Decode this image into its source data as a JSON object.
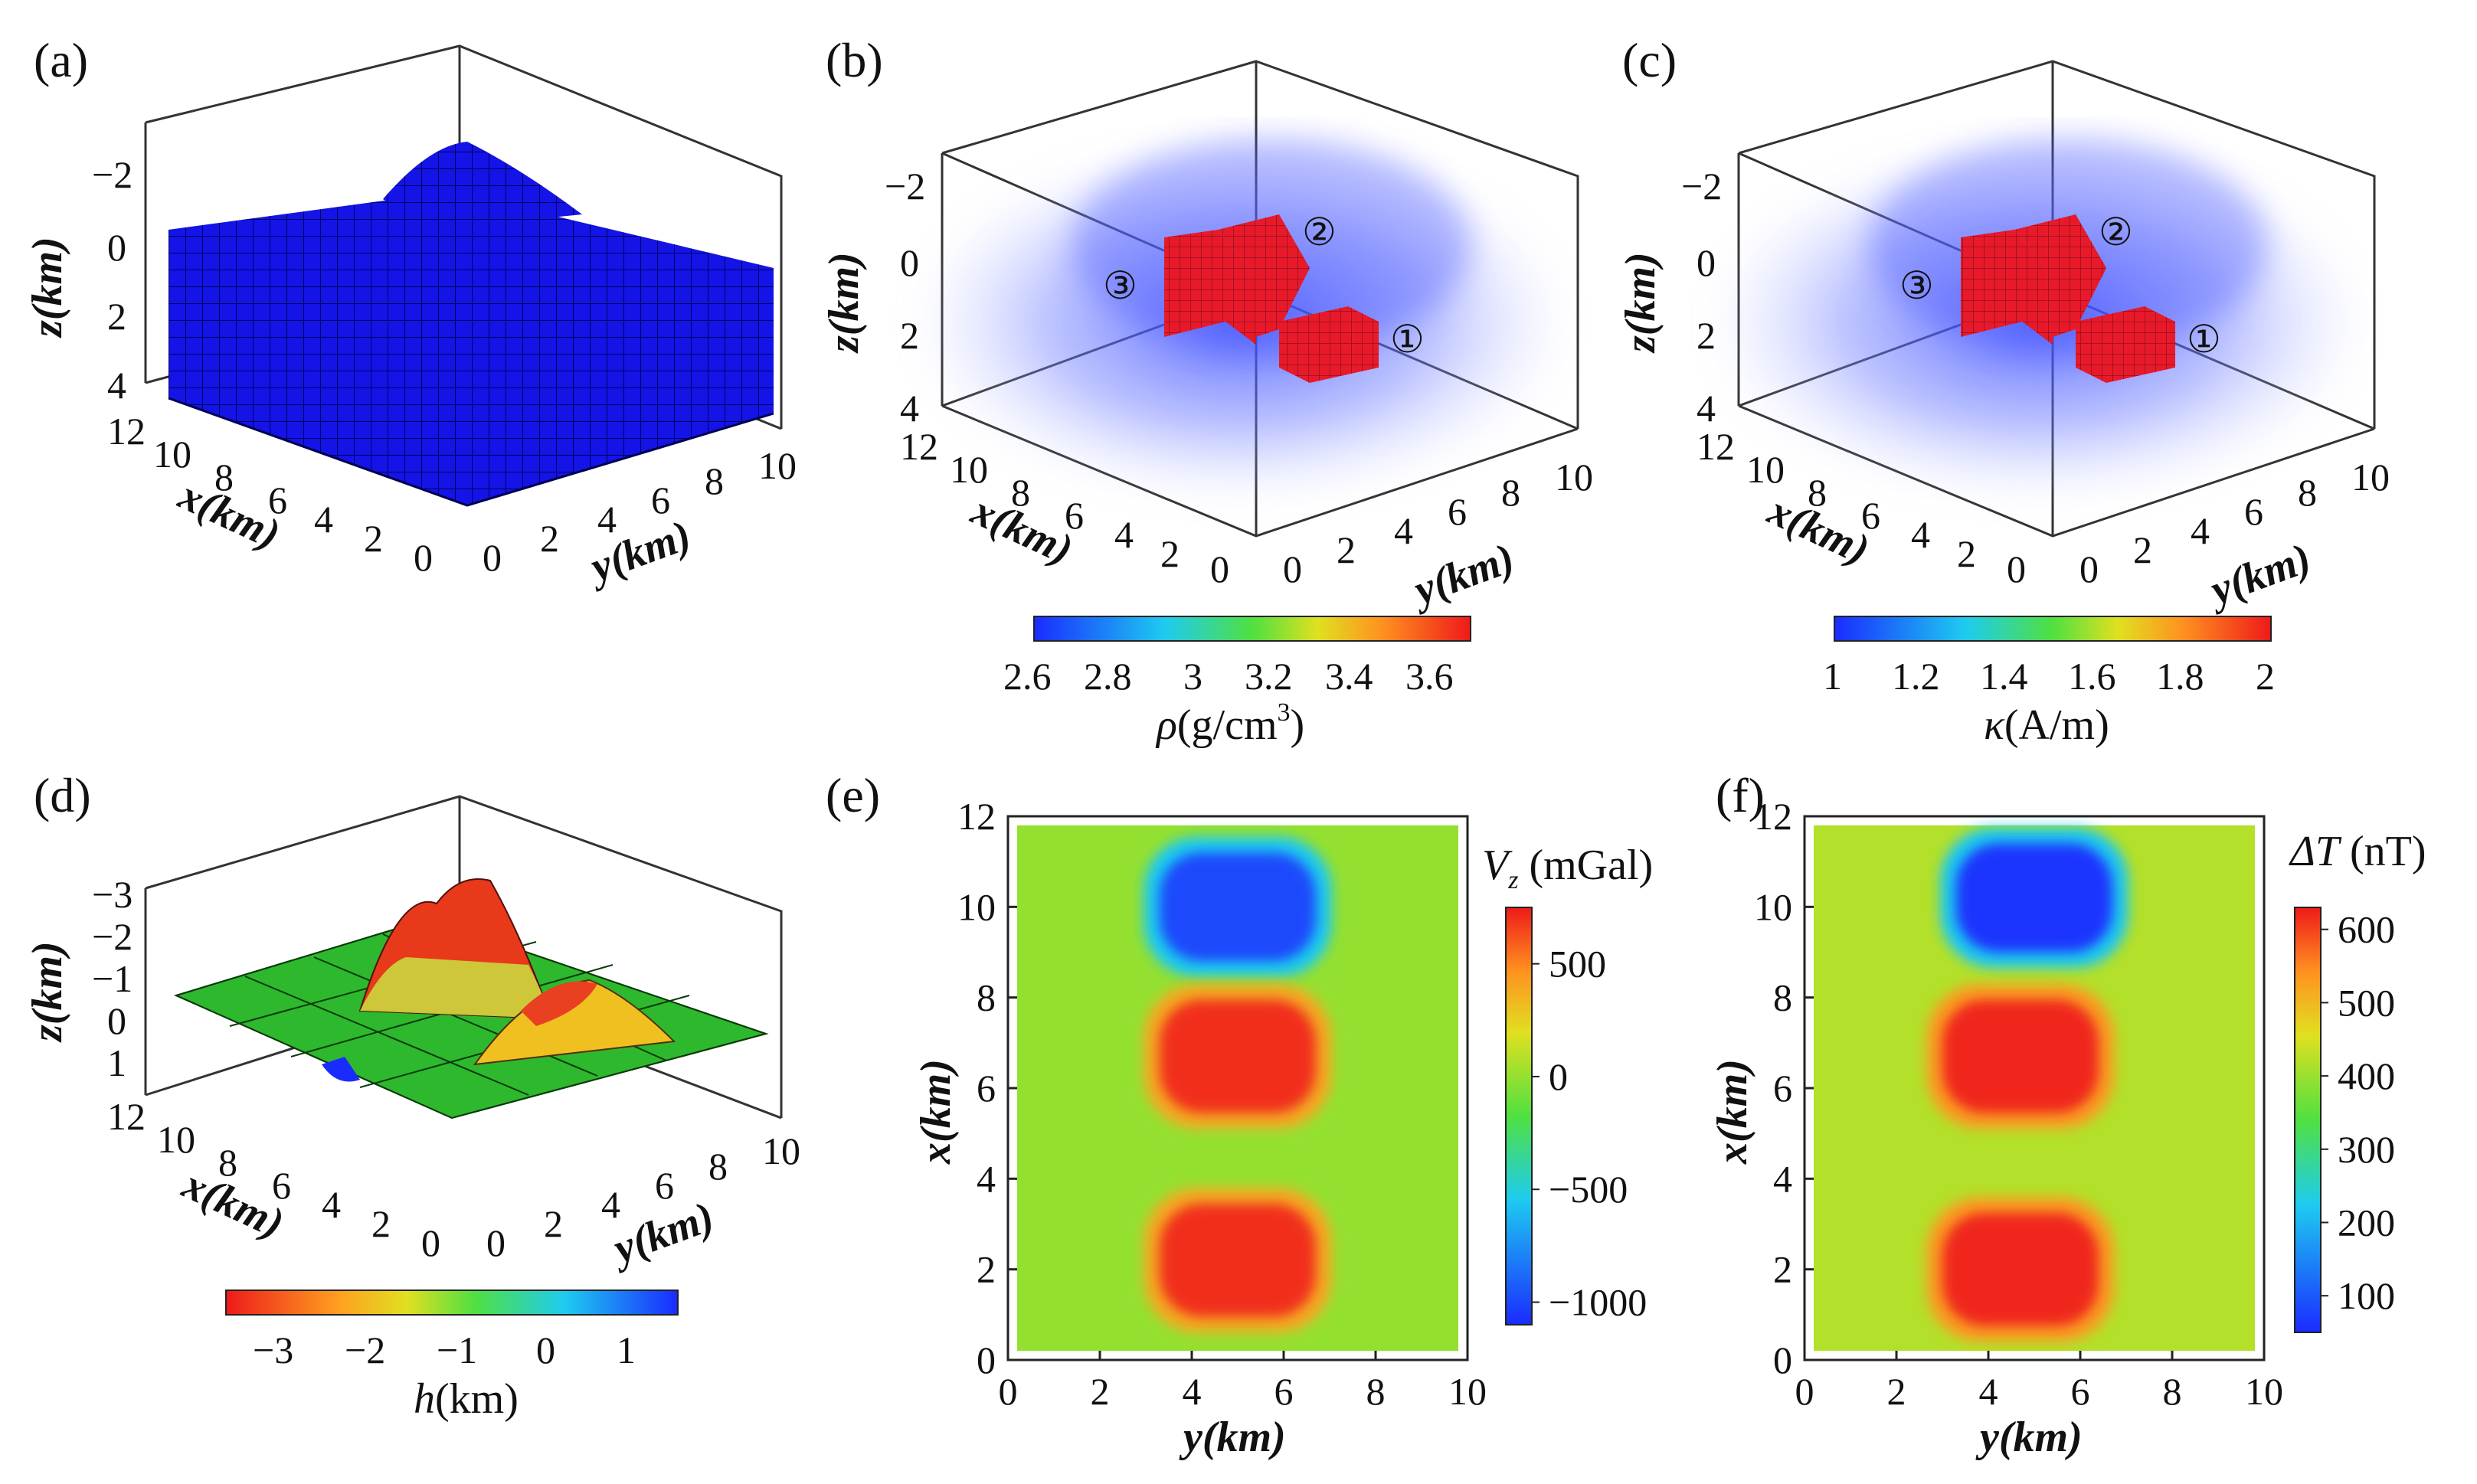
{
  "chart_data": [
    {
      "panel": "(a)",
      "type": "surface3d",
      "description_text": [],
      "z_axis": {
        "label": "z(km)",
        "ticks": [
          "−2",
          "0",
          "2",
          "4"
        ]
      },
      "x_axis": {
        "label": "x(km)",
        "ticks": [
          "12",
          "10",
          "8",
          "6",
          "4",
          "2",
          "0"
        ]
      },
      "y_axis": {
        "label": "y(km)",
        "ticks": [
          "0",
          "2",
          "4",
          "6",
          "8",
          "10"
        ]
      },
      "surface_color": "#1010e8"
    },
    {
      "panel": "(b)",
      "type": "volume3d",
      "z_axis": {
        "label": "z(km)",
        "ticks": [
          "−2",
          "0",
          "2",
          "4"
        ]
      },
      "x_axis": {
        "label": "x(km)",
        "ticks": [
          "12",
          "10",
          "8",
          "6",
          "4",
          "2",
          "0"
        ]
      },
      "y_axis": {
        "label": "y(km)",
        "ticks": [
          "0",
          "2",
          "4",
          "6",
          "8",
          "10"
        ]
      },
      "bodies": [
        "①",
        "②",
        "③"
      ],
      "colorbar": {
        "label_sym": "ρ",
        "label_unit": "(g/cm",
        "label_sup": "3",
        "label_close": ")",
        "ticks": [
          "2.6",
          "2.8",
          "3",
          "3.2",
          "3.4",
          "3.6"
        ],
        "range": [
          2.6,
          3.7
        ]
      }
    },
    {
      "panel": "(c)",
      "type": "volume3d",
      "z_axis": {
        "label": "z(km)",
        "ticks": [
          "−2",
          "0",
          "2",
          "4"
        ]
      },
      "x_axis": {
        "label": "x(km)",
        "ticks": [
          "12",
          "10",
          "8",
          "6",
          "4",
          "2",
          "0"
        ]
      },
      "y_axis": {
        "label": "y(km)",
        "ticks": [
          "0",
          "2",
          "4",
          "6",
          "8",
          "10"
        ]
      },
      "bodies": [
        "①",
        "②",
        "③"
      ],
      "colorbar": {
        "label_sym": "κ",
        "label_unit": "(A/m)",
        "ticks": [
          "1",
          "1.2",
          "1.4",
          "1.6",
          "1.8",
          "2"
        ],
        "range": [
          1,
          2
        ]
      }
    },
    {
      "panel": "(d)",
      "type": "surface3d",
      "z_axis": {
        "label": "z(km)",
        "ticks": [
          "−3",
          "−2",
          "−1",
          "0",
          "1"
        ]
      },
      "x_axis": {
        "label": "x(km)",
        "ticks": [
          "12",
          "10",
          "8",
          "6",
          "4",
          "2",
          "0"
        ]
      },
      "y_axis": {
        "label": "y(km)",
        "ticks": [
          "0",
          "2",
          "4",
          "6",
          "8",
          "10"
        ]
      },
      "colorbar": {
        "label_sym": "h",
        "label_unit": "(km)",
        "ticks": [
          "−3",
          "−2",
          "−1",
          "0",
          "1"
        ],
        "range": [
          -3.6,
          1.5
        ]
      }
    },
    {
      "panel": "(e)",
      "type": "heatmap",
      "xlabel": "y(km)",
      "ylabel": "x(km)",
      "xlim": [
        0,
        10
      ],
      "ylim": [
        0,
        12
      ],
      "xticks": [
        "0",
        "2",
        "4",
        "6",
        "8",
        "10"
      ],
      "yticks": [
        "0",
        "2",
        "4",
        "6",
        "8",
        "10",
        "12"
      ],
      "anomalies": [
        {
          "y_center": 5,
          "x_center": 10.0,
          "value": -1000
        },
        {
          "y_center": 5,
          "x_center": 6.7,
          "value": 700
        },
        {
          "y_center": 5,
          "x_center": 2.2,
          "value": 700
        }
      ],
      "background_value": 0,
      "colorbar": {
        "label_sym": "V",
        "label_sub": "z",
        "label_unit": " (mGal)",
        "ticks": [
          "500",
          "0",
          "−500",
          "−1000"
        ],
        "tick_values": [
          500,
          0,
          -500,
          -1000
        ],
        "range": [
          -1100,
          750
        ]
      }
    },
    {
      "panel": "(f)",
      "type": "heatmap",
      "xlabel": "y(km)",
      "ylabel": "x(km)",
      "xlim": [
        0,
        10
      ],
      "ylim": [
        0,
        12
      ],
      "xticks": [
        "0",
        "2",
        "4",
        "6",
        "8",
        "10"
      ],
      "yticks": [
        "0",
        "2",
        "4",
        "6",
        "8",
        "10",
        "12"
      ],
      "anomalies": [
        {
          "y_center": 5,
          "x_center": 10.2,
          "value": 60
        },
        {
          "y_center": 4.7,
          "x_center": 6.7,
          "value": 620
        },
        {
          "y_center": 4.7,
          "x_center": 2.0,
          "value": 620
        }
      ],
      "background_value": 420,
      "colorbar": {
        "label_sym": "ΔT",
        "label_unit": " (nT)",
        "ticks": [
          "600",
          "500",
          "400",
          "300",
          "200",
          "100"
        ],
        "tick_values": [
          600,
          500,
          400,
          300,
          200,
          100
        ],
        "range": [
          50,
          630
        ]
      }
    }
  ],
  "panel_labels": [
    "(a)",
    "(b)",
    "(c)",
    "(d)",
    "(e)",
    "(f)"
  ]
}
